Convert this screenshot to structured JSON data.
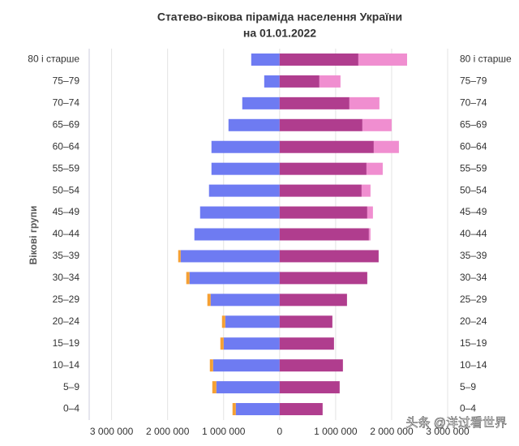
{
  "chart_data": {
    "type": "pyramid",
    "title": "Статево-вікова піраміда населення України",
    "subtitle": "на 01.01.2022",
    "y_label": "Вікові групи",
    "watermark": "头条 @洋过看世界",
    "categories": [
      "80 і старше",
      "75–79",
      "70–74",
      "65–69",
      "60–64",
      "55–59",
      "50–54",
      "45–49",
      "40–44",
      "35–39",
      "30–34",
      "25–29",
      "20–24",
      "15–19",
      "10–14",
      "5–9",
      "0–4"
    ],
    "series": [
      {
        "color": "#6e7bf2",
        "values": [
          -507000,
          -275000,
          -667000,
          -913000,
          -1217000,
          -1217000,
          -1261000,
          -1420000,
          -1522000,
          -1768000,
          -1609000,
          -1232000,
          -971000,
          -1000000,
          -1188000,
          -1130000,
          -783000
        ]
      },
      {
        "color": "#f5a033",
        "values": [
          0,
          0,
          0,
          0,
          0,
          0,
          0,
          0,
          0,
          -43000,
          -58000,
          -58000,
          -58000,
          -58000,
          -58000,
          -72000,
          -58000
        ]
      },
      {
        "color": "#b03d8e",
        "values": [
          1406000,
          710000,
          1246000,
          1478000,
          1681000,
          1551000,
          1464000,
          1565000,
          1594000,
          1768000,
          1565000,
          1203000,
          942000,
          971000,
          1130000,
          1072000,
          768000
        ]
      },
      {
        "color": "#f08ed0",
        "values": [
          870000,
          377000,
          536000,
          522000,
          449000,
          290000,
          159000,
          101000,
          29000,
          0,
          0,
          0,
          0,
          0,
          0,
          0,
          0
        ]
      }
    ],
    "xlim": [
      -3400000,
      3000000
    ],
    "xticks": [
      {
        "value": -3000000,
        "label": "3 000 000"
      },
      {
        "value": -2000000,
        "label": "2 000 000"
      },
      {
        "value": -1000000,
        "label": "1 000 000"
      },
      0,
      {
        "value": 1000000,
        "label": "1 000 000"
      },
      {
        "value": 2000000,
        "label": "2 000 000"
      },
      {
        "value": 3000000,
        "label": "3 000 000"
      }
    ],
    "grid": true
  }
}
